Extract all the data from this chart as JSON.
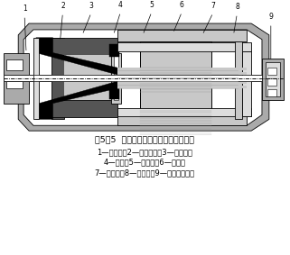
{
  "title": "图5－5  磁电式振动速度传感器结构示意",
  "caption_line1": "1—弹簧片；2—永久磁钢；3—阻尼环；",
  "caption_line2": "4—支架；5—连接杆；6—外壳；",
  "caption_line3": "7—动线圈；8—弹簧片；9—引出线接头。",
  "bg_color": "#ffffff",
  "outer_gray": "#aaaaaa",
  "mid_gray": "#c8c8c8",
  "dark_gray": "#555555",
  "light_gray": "#dddddd",
  "black": "#000000",
  "white": "#ffffff"
}
